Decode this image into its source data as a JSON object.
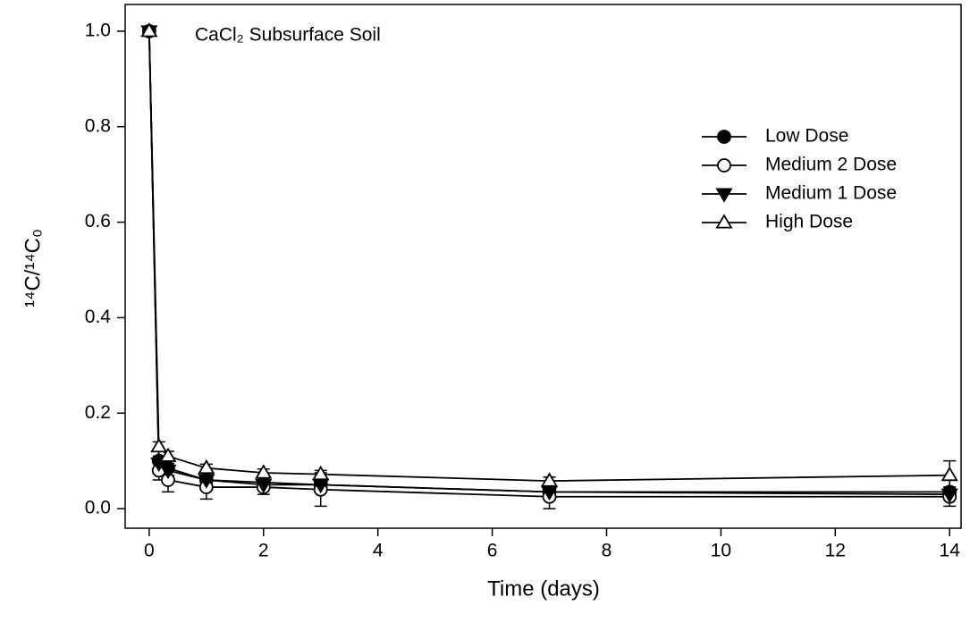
{
  "chart_data": {
    "type": "line",
    "title": "CaCl₂ Subsurface Soil",
    "x_label": "Time (days)",
    "y_label": "¹⁴C/¹⁴C₀",
    "x": [
      0,
      0.17,
      0.33,
      1,
      2,
      3,
      7,
      14
    ],
    "series": [
      {
        "name": "Low Dose",
        "color": "#000000",
        "marker": "circle-filled",
        "values": [
          1.0,
          0.1,
          0.085,
          0.06,
          0.055,
          0.05,
          0.035,
          0.035
        ],
        "errors": [
          0.005,
          0.02,
          0.015,
          0.01,
          0.01,
          0.01,
          0.01,
          0.01
        ]
      },
      {
        "name": "Medium 2 Dose",
        "color": "#000000",
        "marker": "circle-open",
        "values": [
          1.0,
          0.08,
          0.06,
          0.045,
          0.045,
          0.04,
          0.025,
          0.025
        ],
        "errors": [
          0.005,
          0.02,
          0.025,
          0.025,
          0.015,
          0.035,
          0.025,
          0.02
        ]
      },
      {
        "name": "Medium 1 Dose",
        "color": "#000000",
        "marker": "triangle-down-filled",
        "values": [
          1.0,
          0.095,
          0.08,
          0.06,
          0.05,
          0.05,
          0.035,
          0.03
        ],
        "errors": [
          0.005,
          0.015,
          0.015,
          0.01,
          0.01,
          0.01,
          0.01,
          0.01
        ]
      },
      {
        "name": "High Dose",
        "color": "#000000",
        "marker": "triangle-up-open",
        "values": [
          1.0,
          0.13,
          0.11,
          0.085,
          0.075,
          0.072,
          0.058,
          0.07
        ],
        "errors": [
          0.005,
          0.01,
          0.01,
          0.008,
          0.008,
          0.008,
          0.008,
          0.03
        ]
      }
    ],
    "xlim": [
      -0.42,
      14.2
    ],
    "ylim": [
      -0.041,
      1.056
    ],
    "xticks": [
      0,
      2,
      4,
      6,
      8,
      10,
      12,
      14
    ],
    "yticks": [
      {
        "value": 0,
        "label": "0.0"
      },
      0.2,
      0.4,
      0.6,
      0.8,
      {
        "value": 1,
        "label": "1.0"
      }
    ],
    "legend": "upper-right"
  }
}
